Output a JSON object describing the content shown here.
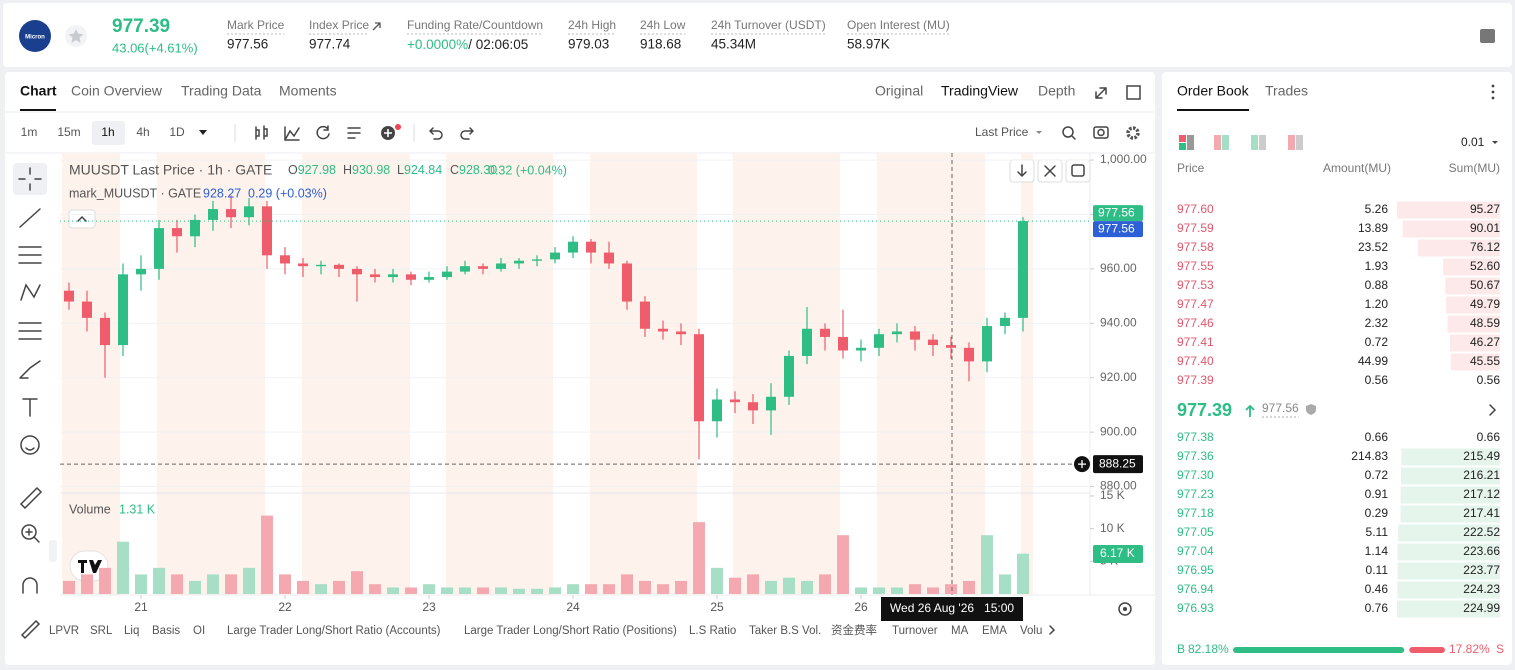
{
  "header": {
    "logo": "Micron",
    "last_price": "977.39",
    "change": "43.06(+4.61%)",
    "stats": [
      {
        "label": "Mark Price",
        "value": "977.56"
      },
      {
        "label": "Index Price",
        "value": "977.74"
      },
      {
        "label": "Funding Rate/Countdown",
        "value": "+0.0000%",
        "extra": "/ 02:06:05"
      },
      {
        "label": "24h High",
        "value": "979.03"
      },
      {
        "label": "24h Low",
        "value": "918.68"
      },
      {
        "label": "24h Turnover (USDT)",
        "value": "45.34M"
      },
      {
        "label": "Open Interest (MU)",
        "value": "58.97K"
      }
    ]
  },
  "tabs": [
    "Chart",
    "Coin Overview",
    "Trading Data",
    "Moments"
  ],
  "views": [
    "Original",
    "TradingView",
    "Depth"
  ],
  "intervals": [
    "1m",
    "15m",
    "1h",
    "4h",
    "1D"
  ],
  "price_source": "Last Price",
  "chart_data": {
    "type": "candlestick",
    "title": "MUUSDT Last Price · 1h · GATE",
    "ohlc_legend": [
      {
        "label": "O",
        "value": "927.98"
      },
      {
        "label": "H",
        "value": "930.98"
      },
      {
        "label": "L",
        "value": "924.84"
      },
      {
        "label": "C",
        "value": "928.30"
      }
    ],
    "change": "0.32 (+0.04%)",
    "mark_legend": {
      "name": "mark_MUUSDT · GATE",
      "value": "928.27",
      "change": "0.29 (+0.03%)"
    },
    "categories": [
      null,
      null,
      null,
      null,
      "21",
      null,
      null,
      null,
      null,
      null,
      null,
      null,
      "22",
      null,
      null,
      null,
      null,
      null,
      null,
      null,
      "23",
      null,
      null,
      null,
      null,
      null,
      null,
      null,
      "24",
      null,
      null,
      null,
      null,
      null,
      null,
      null,
      "25",
      null,
      null,
      null,
      null,
      null,
      null,
      null,
      "26",
      null,
      null,
      null,
      null,
      null,
      null,
      null,
      null,
      null
    ],
    "open": [
      952,
      948,
      942,
      932,
      958,
      960,
      975,
      972,
      978,
      982,
      979,
      983,
      965,
      962,
      961,
      961.5,
      960,
      958,
      957,
      958,
      956,
      957,
      959,
      961,
      960,
      962,
      963,
      963.5,
      966,
      970,
      966,
      962,
      948,
      938,
      937,
      936,
      904,
      912,
      911,
      908,
      913,
      928,
      938,
      935,
      930,
      931,
      936,
      937,
      934,
      932,
      931,
      926,
      939,
      942
    ],
    "high": [
      955,
      952,
      944,
      962,
      965,
      978,
      978,
      980,
      985,
      987,
      986,
      985,
      968,
      964,
      963,
      962,
      961,
      960,
      960,
      959,
      959,
      961,
      963,
      962,
      964,
      964,
      965,
      968,
      972,
      971,
      970,
      963,
      950,
      941,
      940,
      938,
      916,
      915,
      914,
      918,
      930,
      946,
      940,
      945,
      934,
      938,
      940,
      939,
      936,
      935,
      933,
      942,
      944,
      979.03
    ],
    "low": [
      945,
      937,
      920,
      928,
      952,
      956,
      966,
      968,
      974,
      975,
      976,
      960,
      958,
      957,
      958,
      957,
      948,
      955,
      955,
      954,
      955,
      956,
      958,
      958,
      959,
      960,
      961,
      962,
      964,
      962,
      960,
      945,
      935,
      934,
      932,
      890,
      898,
      907,
      903,
      899,
      910,
      925,
      930,
      927,
      926,
      928,
      933,
      930,
      928,
      927,
      918.68,
      922,
      936,
      937
    ],
    "close": [
      948,
      942,
      932,
      958,
      960,
      975,
      972,
      978,
      982,
      979,
      983,
      965,
      962,
      961,
      961.5,
      960,
      958,
      957,
      958,
      956,
      957,
      959,
      961,
      960,
      962,
      963,
      963.5,
      966,
      970,
      966,
      962,
      948,
      938,
      937,
      936,
      904,
      912,
      911,
      908,
      913,
      928,
      938,
      935,
      930,
      931,
      936,
      937,
      934,
      932,
      931,
      926,
      939,
      942,
      977.56
    ],
    "up_color": "#2ebd85",
    "down_color": "#ef5d6c",
    "ylim": [
      878,
      1002.6
    ],
    "yticks": [
      {
        "value": 880,
        "label": "880.00"
      },
      {
        "value": 900,
        "label": "900.00"
      },
      {
        "value": 920,
        "label": "920.00"
      },
      {
        "value": 940,
        "label": "940.00"
      },
      {
        "value": 960,
        "label": "960.00"
      },
      {
        "value": 980,
        "label": "980.00"
      },
      {
        "value": 1000,
        "label": "1,000.00"
      }
    ],
    "grid": true,
    "price_markers": [
      {
        "value": 977.56,
        "color": "#2ebd85"
      },
      {
        "value": 977.56,
        "color": "#2d5fd6"
      }
    ],
    "crosshair": {
      "price": 888.25,
      "time": "Wed 26 Aug '26   15:00"
    },
    "volume": {
      "name": "Volume",
      "legend_value": {
        "value": 1.31,
        "label": "1.31 K"
      },
      "values": [
        2,
        3,
        4,
        8,
        3,
        4,
        3,
        2,
        3,
        3,
        4,
        12,
        3,
        2,
        1.5,
        2,
        3.5,
        1.5,
        1,
        1,
        1.5,
        1,
        1,
        1,
        1,
        0.8,
        0.8,
        1,
        1.5,
        1.5,
        1.5,
        3,
        2,
        1.5,
        2,
        11,
        4,
        2.5,
        3,
        2,
        2.5,
        2,
        3,
        9,
        1,
        1,
        1,
        1.5,
        1,
        1.5,
        2,
        9,
        3,
        6.17
      ],
      "last_label": "6.17 K",
      "up_color": "#a6dfc6",
      "down_color": "#f4a9b1",
      "ylim": [
        0,
        15.15
      ],
      "yticks": [
        {
          "value": 5,
          "label": "5 K"
        },
        {
          "value": 10,
          "label": "10 K"
        },
        {
          "value": 15,
          "label": "15 K"
        }
      ]
    }
  },
  "indicators": [
    "LPVR",
    "SRL",
    "Liq",
    "Basis",
    "OI",
    "Large Trader Long/Short Ratio (Accounts)",
    "Large Trader Long/Short Ratio (Positions)",
    "L.S Ratio",
    "Taker B.S Vol.",
    "资金费率",
    "Turnover",
    "MA",
    "EMA",
    "Volu"
  ],
  "order_book": {
    "tabs": [
      "Order Book",
      "Trades"
    ],
    "tick": "0.01",
    "columns": [
      "Price",
      "Amount(MU)",
      "Sum(MU)"
    ],
    "asks": [
      [
        "977.60",
        "5.26",
        "95.27"
      ],
      [
        "977.59",
        "13.89",
        "90.01"
      ],
      [
        "977.58",
        "23.52",
        "76.12"
      ],
      [
        "977.55",
        "1.93",
        "52.60"
      ],
      [
        "977.53",
        "0.88",
        "50.67"
      ],
      [
        "977.47",
        "1.20",
        "49.79"
      ],
      [
        "977.46",
        "2.32",
        "48.59"
      ],
      [
        "977.41",
        "0.72",
        "46.27"
      ],
      [
        "977.40",
        "44.99",
        "45.55"
      ],
      [
        "977.39",
        "0.56",
        "0.56"
      ]
    ],
    "last": "977.39",
    "mark": "977.56",
    "bids": [
      [
        "977.38",
        "0.66",
        "0.66"
      ],
      [
        "977.36",
        "214.83",
        "215.49"
      ],
      [
        "977.30",
        "0.72",
        "216.21"
      ],
      [
        "977.23",
        "0.91",
        "217.12"
      ],
      [
        "977.18",
        "0.29",
        "217.41"
      ],
      [
        "977.05",
        "5.11",
        "222.52"
      ],
      [
        "977.04",
        "1.14",
        "223.66"
      ],
      [
        "976.95",
        "0.11",
        "223.77"
      ],
      [
        "976.94",
        "0.46",
        "224.23"
      ],
      [
        "976.93",
        "0.76",
        "224.99"
      ]
    ],
    "ratio": {
      "buy_label": "B",
      "buy": "82.18%",
      "sell": "17.82%",
      "sell_label": "S"
    }
  }
}
